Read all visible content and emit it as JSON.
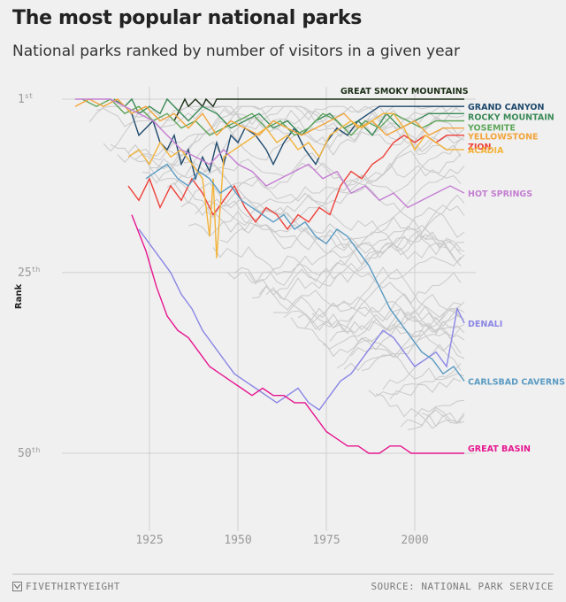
{
  "header": {
    "title": "The most popular national parks",
    "subtitle": "National parks ranked by number of visitors in a given year"
  },
  "footer": {
    "brand": "FIVETHIRTYEIGHT",
    "source": "SOURCE: NATIONAL PARK SERVICE",
    "brand_icon": "fivethirtyeight-logo-icon"
  },
  "chart_data": {
    "type": "line",
    "ylabel": "Rank",
    "xlabel": "",
    "xlim": [
      1904,
      2015
    ],
    "ylim": [
      1,
      58
    ],
    "y_inverted": true,
    "grid": true,
    "x_ticks": [
      1925,
      1950,
      1975,
      2000
    ],
    "x_tick_labels": [
      "1925",
      "1950",
      "1975",
      "2000"
    ],
    "y_ticks": [
      1,
      25,
      50
    ],
    "y_tick_labels": [
      {
        "num": "1",
        "suffix": "st"
      },
      {
        "num": "25",
        "suffix": "th"
      },
      {
        "num": "50",
        "suffix": "th"
      }
    ],
    "background_series_color": "#c9c9c9",
    "background_series_count": 44,
    "series": [
      {
        "name": "GREAT SMOKY MOUNTAINS",
        "color": "#1c2f17",
        "label_position": "above",
        "x": [
          1932,
          1934,
          1935,
          1936,
          1938,
          1940,
          1941,
          1943,
          1944,
          1946,
          2014
        ],
        "y": [
          4,
          2,
          1,
          2,
          1,
          2,
          1,
          2,
          1,
          1,
          1
        ]
      },
      {
        "name": "GRAND CANYON",
        "color": "#1f4a6e",
        "x": [
          1920,
          1922,
          1924,
          1926,
          1928,
          1930,
          1932,
          1934,
          1936,
          1938,
          1940,
          1942,
          1944,
          1946,
          1948,
          1950,
          1952,
          1955,
          1958,
          1960,
          1963,
          1966,
          1969,
          1972,
          1975,
          1978,
          1981,
          1984,
          1987,
          1990,
          1995,
          2000,
          2005,
          2014
        ],
        "y": [
          3,
          6,
          5,
          4,
          7,
          8,
          6,
          10,
          8,
          12,
          9,
          11,
          7,
          10,
          6,
          7,
          5,
          6,
          8,
          10,
          7,
          5,
          8,
          10,
          7,
          5,
          6,
          4,
          3,
          2,
          2,
          2,
          2,
          2
        ]
      },
      {
        "name": "ROCKY MOUNTAIN",
        "color": "#3a8a57",
        "x": [
          1915,
          1918,
          1920,
          1922,
          1925,
          1928,
          1930,
          1932,
          1934,
          1936,
          1940,
          1944,
          1948,
          1952,
          1956,
          1960,
          1964,
          1968,
          1972,
          1976,
          1980,
          1984,
          1988,
          1992,
          1996,
          2000,
          2004,
          2008,
          2014
        ],
        "y": [
          1,
          2,
          1,
          3,
          2,
          3,
          1,
          2,
          3,
          4,
          2,
          3,
          5,
          4,
          3,
          5,
          4,
          6,
          4,
          3,
          5,
          4,
          6,
          3,
          5,
          4,
          3,
          3,
          3
        ]
      },
      {
        "name": "YOSEMITE",
        "color": "#5ea65a",
        "x": [
          1906,
          1910,
          1914,
          1918,
          1922,
          1926,
          1930,
          1934,
          1938,
          1942,
          1946,
          1950,
          1954,
          1958,
          1962,
          1966,
          1970,
          1974,
          1978,
          1982,
          1986,
          1990,
          1994,
          1998,
          2002,
          2006,
          2010,
          2014
        ],
        "y": [
          1,
          2,
          1,
          3,
          2,
          4,
          3,
          5,
          4,
          6,
          5,
          4,
          3,
          5,
          4,
          6,
          5,
          3,
          4,
          6,
          4,
          5,
          3,
          4,
          5,
          4,
          4,
          4
        ]
      },
      {
        "name": "YELLOWSTONE",
        "color": "#f2a43a",
        "x": [
          1904,
          1908,
          1912,
          1916,
          1920,
          1924,
          1928,
          1932,
          1936,
          1940,
          1944,
          1948,
          1952,
          1956,
          1960,
          1964,
          1968,
          1972,
          1976,
          1980,
          1984,
          1988,
          1992,
          1996,
          2000,
          2004,
          2008,
          2014
        ],
        "y": [
          2,
          1,
          2,
          1,
          3,
          2,
          4,
          3,
          5,
          3,
          6,
          4,
          5,
          6,
          4,
          5,
          6,
          5,
          4,
          3,
          5,
          4,
          6,
          5,
          4,
          6,
          5,
          5
        ]
      },
      {
        "name": "ZION",
        "color": "#ee3f37",
        "x": [
          1919,
          1922,
          1925,
          1928,
          1931,
          1934,
          1937,
          1940,
          1943,
          1946,
          1949,
          1952,
          1955,
          1958,
          1961,
          1964,
          1967,
          1970,
          1973,
          1976,
          1979,
          1982,
          1985,
          1988,
          1991,
          1994,
          1997,
          2000,
          2003,
          2006,
          2009,
          2014
        ],
        "y": [
          13,
          15,
          12,
          16,
          13,
          15,
          12,
          14,
          17,
          15,
          13,
          16,
          18,
          16,
          17,
          19,
          17,
          18,
          16,
          17,
          13,
          11,
          12,
          10,
          9,
          7,
          6,
          7,
          6,
          7,
          6,
          6
        ]
      },
      {
        "name": "ACADIA",
        "color": "#f2b33a",
        "x": [
          1919,
          1922,
          1925,
          1928,
          1931,
          1934,
          1937,
          1940,
          1942,
          1943,
          1944,
          1946,
          1949,
          1952,
          1955,
          1958,
          1961,
          1964,
          1967,
          1970,
          1973,
          1976,
          1979,
          1982,
          1985,
          1988,
          1991,
          1994,
          1997,
          2000,
          2003,
          2006,
          2009,
          2014
        ],
        "y": [
          9,
          8,
          10,
          7,
          9,
          8,
          10,
          12,
          20,
          12,
          23,
          9,
          8,
          7,
          6,
          5,
          7,
          6,
          8,
          7,
          9,
          6,
          5,
          4,
          5,
          4,
          3,
          3,
          5,
          8,
          6,
          7,
          8,
          8
        ]
      },
      {
        "name": "HOT SPRINGS",
        "color": "#c47fd2",
        "x": [
          1904,
          1910,
          1914,
          1918,
          1922,
          1926,
          1930,
          1934,
          1938,
          1942,
          1946,
          1950,
          1954,
          1958,
          1962,
          1966,
          1970,
          1974,
          1978,
          1982,
          1986,
          1990,
          1994,
          1998,
          2002,
          2006,
          2010,
          2014
        ],
        "y": [
          1,
          1,
          1,
          2,
          3,
          4,
          6,
          8,
          9,
          10,
          8,
          10,
          11,
          13,
          12,
          11,
          10,
          12,
          11,
          14,
          13,
          15,
          14,
          16,
          15,
          14,
          13,
          14
        ]
      },
      {
        "name": "DENALI",
        "color": "#8a86e5",
        "x": [
          1922,
          1925,
          1928,
          1931,
          1934,
          1937,
          1940,
          1943,
          1946,
          1949,
          1952,
          1955,
          1958,
          1961,
          1964,
          1967,
          1970,
          1973,
          1976,
          1979,
          1982,
          1985,
          1988,
          1991,
          1994,
          1997,
          2000,
          2003,
          2006,
          2009,
          2012,
          2014
        ],
        "y": [
          19,
          21,
          23,
          25,
          28,
          30,
          33,
          35,
          37,
          39,
          40,
          41,
          42,
          43,
          42,
          41,
          43,
          44,
          42,
          40,
          39,
          37,
          35,
          33,
          34,
          36,
          38,
          37,
          36,
          38,
          30,
          32
        ]
      },
      {
        "name": "CARLSBAD CAVERNS",
        "color": "#5b9bc2",
        "x": [
          1924,
          1927,
          1930,
          1933,
          1936,
          1939,
          1942,
          1945,
          1948,
          1951,
          1954,
          1957,
          1960,
          1963,
          1966,
          1969,
          1972,
          1975,
          1978,
          1981,
          1984,
          1987,
          1990,
          1993,
          1996,
          1999,
          2002,
          2005,
          2008,
          2011,
          2014
        ],
        "y": [
          12,
          11,
          10,
          12,
          13,
          11,
          12,
          14,
          13,
          15,
          16,
          17,
          18,
          17,
          19,
          18,
          20,
          21,
          19,
          20,
          22,
          24,
          27,
          30,
          32,
          34,
          36,
          37,
          39,
          38,
          40
        ]
      },
      {
        "name": "GREAT BASIN",
        "color": "#e6168f",
        "x": [
          1920,
          1924,
          1927,
          1930,
          1933,
          1936,
          1939,
          1942,
          1945,
          1948,
          1951,
          1954,
          1957,
          1960,
          1963,
          1966,
          1969,
          1972,
          1975,
          1978,
          1981,
          1984,
          1987,
          1990,
          1993,
          1996,
          1999,
          2002,
          2005,
          2008,
          2011,
          2014
        ],
        "y": [
          17,
          22,
          27,
          31,
          33,
          34,
          36,
          38,
          39,
          40,
          41,
          42,
          41,
          42,
          42,
          43,
          43,
          45,
          47,
          48,
          49,
          49,
          50,
          50,
          49,
          49,
          50,
          50,
          50,
          50,
          50,
          50
        ]
      }
    ]
  }
}
